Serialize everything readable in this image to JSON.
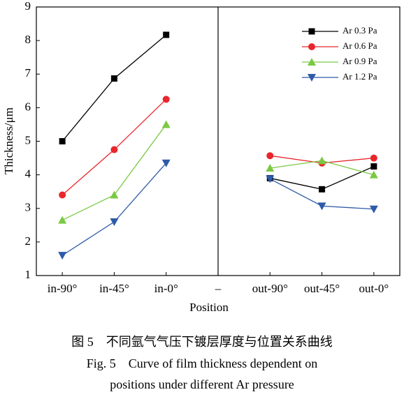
{
  "chart_data": {
    "type": "line",
    "categories": [
      "in-90°",
      "in-45°",
      "in-0°",
      "–",
      "out-90°",
      "out-45°",
      "out-0°"
    ],
    "series": [
      {
        "name": "Ar 0.3 Pa",
        "color": "#000000",
        "marker": "square",
        "values": [
          5.0,
          6.87,
          8.17,
          null,
          3.9,
          3.57,
          4.25
        ]
      },
      {
        "name": "Ar 0.6 Pa",
        "color": "#e8262b",
        "marker": "circle",
        "values": [
          3.4,
          4.75,
          6.25,
          null,
          4.57,
          4.35,
          4.5
        ]
      },
      {
        "name": "Ar 0.9 Pa",
        "color": "#7ac943",
        "marker": "triangle-up",
        "values": [
          2.65,
          3.4,
          5.5,
          null,
          4.2,
          4.42,
          4.0
        ]
      },
      {
        "name": "Ar 1.2 Pa",
        "color": "#2e5aa8",
        "marker": "triangle-down",
        "values": [
          1.6,
          2.6,
          4.35,
          null,
          3.88,
          3.07,
          2.98
        ]
      }
    ],
    "xlabel": "Position",
    "ylabel": "Thickness/μm",
    "ylim": [
      1,
      9
    ],
    "yticks": [
      1,
      2,
      3,
      4,
      5,
      6,
      7,
      8,
      9
    ],
    "legend": "upper-right",
    "caption": [
      "图 5　不同氩气气压下镀层厚度与位置关系曲线",
      "Fig. 5　Curve of film thickness dependent on",
      "positions under different Ar pressure"
    ]
  }
}
